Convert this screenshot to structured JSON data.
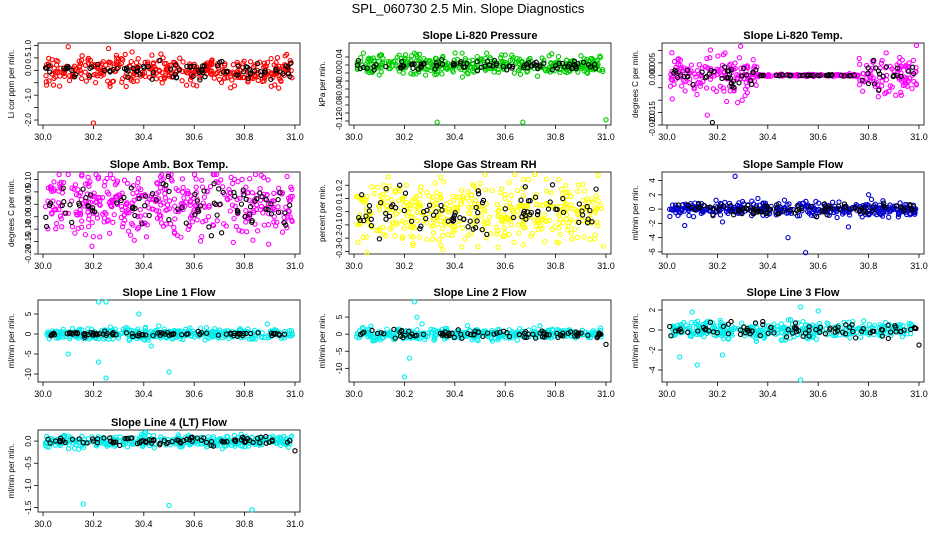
{
  "page": {
    "title": "SPL_060730  2.5 Min. Slope Diagnostics"
  },
  "chart_data": [
    {
      "type": "scatter",
      "title": "Slope Li-820 CO2",
      "ylabel": "Li cor ppm per min.",
      "xlim": [
        29.98,
        31.02
      ],
      "ylim": [
        -2.2,
        1.1
      ],
      "xticks": [
        "30.0",
        "30.2",
        "30.4",
        "30.6",
        "30.8",
        "31.0"
      ],
      "yticks": [
        -2,
        -1.5,
        -1,
        -0.5,
        0,
        0.5,
        1
      ],
      "ytick_labels": [
        "-2.0",
        "",
        "-1.0",
        "",
        "0.0",
        "0.5",
        "1.0"
      ],
      "series": [
        {
          "color": "#ff0000",
          "n": 360,
          "center": 0,
          "spread": 0.28,
          "outliers": [
            [
              30.2,
              -2.12
            ],
            [
              30.1,
              0.95
            ],
            [
              30.26,
              0.88
            ],
            [
              30.33,
              -0.65
            ],
            [
              30.35,
              0.35
            ],
            [
              30.57,
              -0.6
            ]
          ]
        },
        {
          "color": "#000000",
          "n": 90,
          "center": 0,
          "spread": 0.18,
          "outliers": []
        }
      ]
    },
    {
      "type": "scatter",
      "title": "Slope Li-820 Pressure",
      "ylabel": "kPa per min.",
      "xlim": [
        29.98,
        31.02
      ],
      "ylim": [
        -0.13,
        0.075
      ],
      "xticks": [
        "30.0",
        "30.2",
        "30.4",
        "30.6",
        "30.8",
        "31.0"
      ],
      "yticks": [
        -0.12,
        -0.1,
        -0.08,
        -0.06,
        -0.04,
        -0.02,
        0,
        0.02,
        0.04
      ],
      "ytick_labels": [
        "-0.12",
        "",
        "-0.08",
        "",
        "-0.04",
        "",
        "0.00",
        "",
        "0.04"
      ],
      "series": [
        {
          "color": "#00cc00",
          "n": 360,
          "center": 0.02,
          "spread": 0.012,
          "outliers": [
            [
              30.33,
              -0.123
            ],
            [
              30.67,
              -0.123
            ],
            [
              31.0,
              -0.117
            ],
            [
              30.43,
              -0.01
            ],
            [
              30.1,
              -0.005
            ]
          ]
        },
        {
          "color": "#000000",
          "n": 90,
          "center": 0.02,
          "spread": 0.006,
          "outliers": []
        }
      ]
    },
    {
      "type": "scatter",
      "title": "Slope Li-820 Temp.",
      "ylabel": "degrees C per min.",
      "xlim": [
        29.98,
        31.02
      ],
      "ylim": [
        -0.02,
        0.013
      ],
      "xticks": [
        "30.0",
        "30.2",
        "30.4",
        "30.6",
        "30.8",
        "31.0"
      ],
      "yticks": [
        -0.02,
        -0.015,
        -0.01,
        -0.005,
        0,
        0.005,
        0.01
      ],
      "ytick_labels": [
        "-0.020",
        "-0.015",
        "",
        "",
        "0.000",
        "0.005",
        ""
      ],
      "series": [
        {
          "color": "#ff00ff",
          "n": 360,
          "center": 0,
          "spread": 0.004,
          "flat_between": [
            30.36,
            30.76
          ],
          "outliers": [
            [
              30.16,
              -0.016
            ],
            [
              30.23,
              0.009
            ],
            [
              30.28,
              -0.011
            ],
            [
              30.87,
              0.009
            ],
            [
              30.99,
              0.012
            ],
            [
              30.93,
              -0.008
            ]
          ]
        },
        {
          "color": "#000000",
          "n": 90,
          "center": 0,
          "spread": 0.002,
          "flat_between": [
            30.36,
            30.76
          ],
          "outliers": [
            [
              30.18,
              -0.019
            ],
            [
              30.82,
              0.006
            ],
            [
              30.84,
              -0.006
            ]
          ]
        }
      ]
    },
    {
      "type": "scatter",
      "title": "Slope Amb. Box Temp.",
      "ylabel": "degrees C per min.",
      "xlim": [
        29.98,
        31.02
      ],
      "ylim": [
        -0.2,
        0.13
      ],
      "xticks": [
        "30.0",
        "30.2",
        "30.4",
        "30.6",
        "30.8",
        "31.0"
      ],
      "yticks": [
        -0.2,
        -0.15,
        -0.1,
        -0.05,
        0,
        0.05,
        0.1
      ],
      "ytick_labels": [
        "-0.20",
        "-0.15",
        "-0.10",
        "-0.05",
        "0.00",
        "0.05",
        "0.10"
      ],
      "series": [
        {
          "color": "#ff00ff",
          "n": 420,
          "center": 0,
          "spread": 0.065,
          "outliers": [
            [
              30.1,
              0.12
            ],
            [
              30.2,
              -0.13
            ],
            [
              30.63,
              -0.13
            ],
            [
              30.22,
              0.11
            ]
          ]
        },
        {
          "color": "#000000",
          "n": 90,
          "center": 0,
          "spread": 0.05,
          "outliers": []
        }
      ]
    },
    {
      "type": "scatter",
      "title": "Slope Gas Stream RH",
      "ylabel": "percent per min.",
      "xlim": [
        29.98,
        31.02
      ],
      "ylim": [
        -0.32,
        0.3
      ],
      "xticks": [
        "30.0",
        "30.2",
        "30.4",
        "30.6",
        "30.8",
        "31.0"
      ],
      "yticks": [
        -0.3,
        -0.2,
        -0.1,
        0,
        0.1,
        0.2
      ],
      "ytick_labels": [
        "-0.3",
        "-0.2",
        "-0.1",
        "0.0",
        "0.1",
        "0.2"
      ],
      "series": [
        {
          "color": "#ffff00",
          "n": 430,
          "center": 0,
          "spread": 0.12,
          "outliers": [
            [
              30.05,
              -0.31
            ],
            [
              30.52,
              0.28
            ],
            [
              30.99,
              -0.26
            ]
          ]
        },
        {
          "color": "#000000",
          "n": 90,
          "center": 0,
          "spread": 0.09,
          "outliers": []
        }
      ]
    },
    {
      "type": "scatter",
      "title": "Slope Sample Flow",
      "ylabel": "ml/min per min.",
      "xlim": [
        29.98,
        31.02
      ],
      "ylim": [
        -6.3,
        5.2
      ],
      "xticks": [
        "30.0",
        "30.2",
        "30.4",
        "30.6",
        "30.8",
        "31.0"
      ],
      "yticks": [
        -6,
        -4,
        -2,
        0,
        2,
        4
      ],
      "ytick_labels": [
        "-6",
        "-4",
        "-2",
        "0",
        "2",
        "4"
      ],
      "series": [
        {
          "color": "#0000cc",
          "n": 380,
          "center": 0,
          "spread": 0.5,
          "outliers": [
            [
              30.27,
              4.6
            ],
            [
              30.48,
              -4.0
            ],
            [
              30.55,
              -6.1
            ],
            [
              30.07,
              -2.3
            ],
            [
              30.8,
              2.0
            ],
            [
              30.72,
              -2.5
            ],
            [
              30.22,
              -1.8
            ]
          ]
        },
        {
          "color": "#000000",
          "n": 90,
          "center": 0,
          "spread": 0.4,
          "outliers": []
        }
      ]
    },
    {
      "type": "scatter",
      "title": "Slope Line 1 Flow",
      "ylabel": "ml/min per min.",
      "xlim": [
        29.98,
        31.02
      ],
      "ylim": [
        -12,
        8.5
      ],
      "xticks": [
        "30.0",
        "30.2",
        "30.4",
        "30.6",
        "30.8",
        "31.0"
      ],
      "yticks": [
        -10,
        -5,
        0,
        5
      ],
      "ytick_labels": [
        "-10",
        "-5",
        "0",
        "5"
      ],
      "series": [
        {
          "color": "#00eeee",
          "n": 360,
          "center": 0,
          "spread": 0.7,
          "outliers": [
            [
              30.22,
              8.0
            ],
            [
              30.25,
              8.0
            ],
            [
              30.25,
              -11.0
            ],
            [
              30.22,
              -7.0
            ],
            [
              30.38,
              5.0
            ],
            [
              30.5,
              -9.5
            ],
            [
              30.1,
              -5.0
            ],
            [
              30.43,
              -3.0
            ],
            [
              30.89,
              2.5
            ],
            [
              30.46,
              2.0
            ]
          ]
        },
        {
          "color": "#000000",
          "n": 90,
          "center": 0,
          "spread": 0.3,
          "outliers": []
        }
      ]
    },
    {
      "type": "scatter",
      "title": "Slope Line 2 Flow",
      "ylabel": "ml/min per min.",
      "xlim": [
        29.98,
        31.02
      ],
      "ylim": [
        -14,
        10
      ],
      "xticks": [
        "30.0",
        "30.2",
        "30.4",
        "30.6",
        "30.8",
        "31.0"
      ],
      "yticks": [
        -10,
        -5,
        0,
        5
      ],
      "ytick_labels": [
        "-10",
        "-5",
        "0",
        "5"
      ],
      "series": [
        {
          "color": "#00eeee",
          "n": 360,
          "center": 0,
          "spread": 0.8,
          "outliers": [
            [
              30.24,
              9.5
            ],
            [
              30.2,
              -12.5
            ],
            [
              30.22,
              -7.0
            ],
            [
              30.25,
              5.0
            ],
            [
              30.27,
              3.0
            ],
            [
              30.45,
              2.5
            ]
          ]
        },
        {
          "color": "#000000",
          "n": 90,
          "center": 0,
          "spread": 0.6,
          "outliers": [
            [
              31.0,
              -3.0
            ]
          ]
        }
      ]
    },
    {
      "type": "scatter",
      "title": "Slope Line 3 Flow",
      "ylabel": "ml/min per min.",
      "xlim": [
        29.98,
        31.02
      ],
      "ylim": [
        -5.2,
        3.0
      ],
      "xticks": [
        "30.0",
        "30.2",
        "30.4",
        "30.6",
        "30.8",
        "31.0"
      ],
      "yticks": [
        -4,
        -2,
        0,
        2
      ],
      "ytick_labels": [
        "-4",
        "-2",
        "0",
        "2"
      ],
      "series": [
        {
          "color": "#00eeee",
          "n": 360,
          "center": 0,
          "spread": 0.45,
          "outliers": [
            [
              30.53,
              -5.0
            ],
            [
              30.12,
              -3.5
            ],
            [
              30.22,
              -2.5
            ],
            [
              30.53,
              2.3
            ],
            [
              30.6,
              1.9
            ],
            [
              30.05,
              -2.7
            ],
            [
              30.1,
              1.8
            ]
          ]
        },
        {
          "color": "#000000",
          "n": 90,
          "center": 0,
          "spread": 0.35,
          "outliers": [
            [
              31.0,
              -1.5
            ]
          ]
        }
      ]
    },
    {
      "type": "scatter",
      "title": "Slope Line 4 (LT) Flow",
      "ylabel": "ml/min per min.",
      "xlim": [
        29.98,
        31.02
      ],
      "ylim": [
        -1.6,
        0.25
      ],
      "xticks": [
        "30.0",
        "30.2",
        "30.4",
        "30.6",
        "30.8",
        "31.0"
      ],
      "yticks": [
        -1.5,
        -1,
        -0.5,
        0
      ],
      "ytick_labels": [
        "-1.5",
        "-1.0",
        "-0.5",
        "0.0"
      ],
      "series": [
        {
          "color": "#00eeee",
          "n": 360,
          "center": 0,
          "spread": 0.07,
          "outliers": [
            [
              30.16,
              -1.42
            ],
            [
              30.5,
              -1.45
            ],
            [
              30.83,
              -1.55
            ]
          ]
        },
        {
          "color": "#000000",
          "n": 90,
          "center": 0,
          "spread": 0.05,
          "outliers": [
            [
              31.0,
              -0.22
            ]
          ]
        }
      ]
    }
  ]
}
